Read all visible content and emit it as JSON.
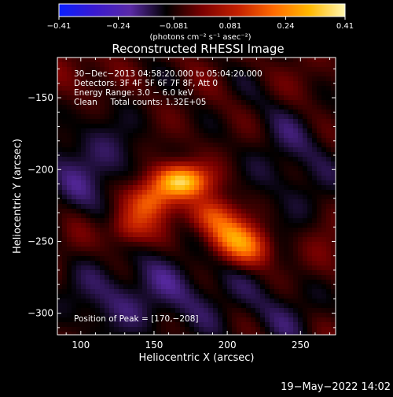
{
  "chart_data": {
    "type": "heatmap",
    "title": "Reconstructed RHESSI Image",
    "xlabel": "Heliocentric X (arcsec)",
    "ylabel": "Heliocentric Y (arcsec)",
    "xlim": [
      84,
      274
    ],
    "ylim": [
      -315,
      -122
    ],
    "x_ticks": [
      100,
      150,
      200,
      250
    ],
    "y_ticks": [
      -150,
      -200,
      -250,
      -300
    ],
    "x_tick_labels": [
      "100",
      "150",
      "200",
      "250"
    ],
    "y_tick_labels": [
      "−150",
      "−200",
      "−250",
      "−300"
    ],
    "colorbar": {
      "ticks": [
        -0.41,
        -0.24,
        -0.081,
        0.081,
        0.24,
        0.41
      ],
      "tick_labels": [
        "−0.41",
        "−0.24",
        "−0.081",
        "0.081",
        "0.24",
        "0.41"
      ],
      "unit_label": "(photons cm⁻² s⁻¹ asec⁻²)",
      "colors": [
        "#0a1fff",
        "#3a1ad0",
        "#5a2aa6",
        "#000000",
        "#7a0000",
        "#c42000",
        "#ff6a00",
        "#ffb800",
        "#fff7b0"
      ]
    },
    "annotations": [
      "30−Dec−2013 04:58:20.000 to 05:04:20.000",
      "Detectors: 3F 4F 5F 6F 7F 8F, Att 0",
      "Energy Range: 3.0 − 6.0 keV",
      "Clean     Total counts: 1.32E+05"
    ],
    "peak_label": "Position of Peak = [170,−208]",
    "sources": [
      {
        "x": 168,
        "y": -208,
        "amp": 0.41
      },
      {
        "x": 147,
        "y": -222,
        "amp": 0.26
      },
      {
        "x": 133,
        "y": -240,
        "amp": 0.18
      },
      {
        "x": 190,
        "y": -232,
        "amp": 0.2
      },
      {
        "x": 202,
        "y": -246,
        "amp": 0.22
      },
      {
        "x": 215,
        "y": -255,
        "amp": 0.22
      }
    ]
  },
  "footer_date": "19−May−2022 14:02"
}
